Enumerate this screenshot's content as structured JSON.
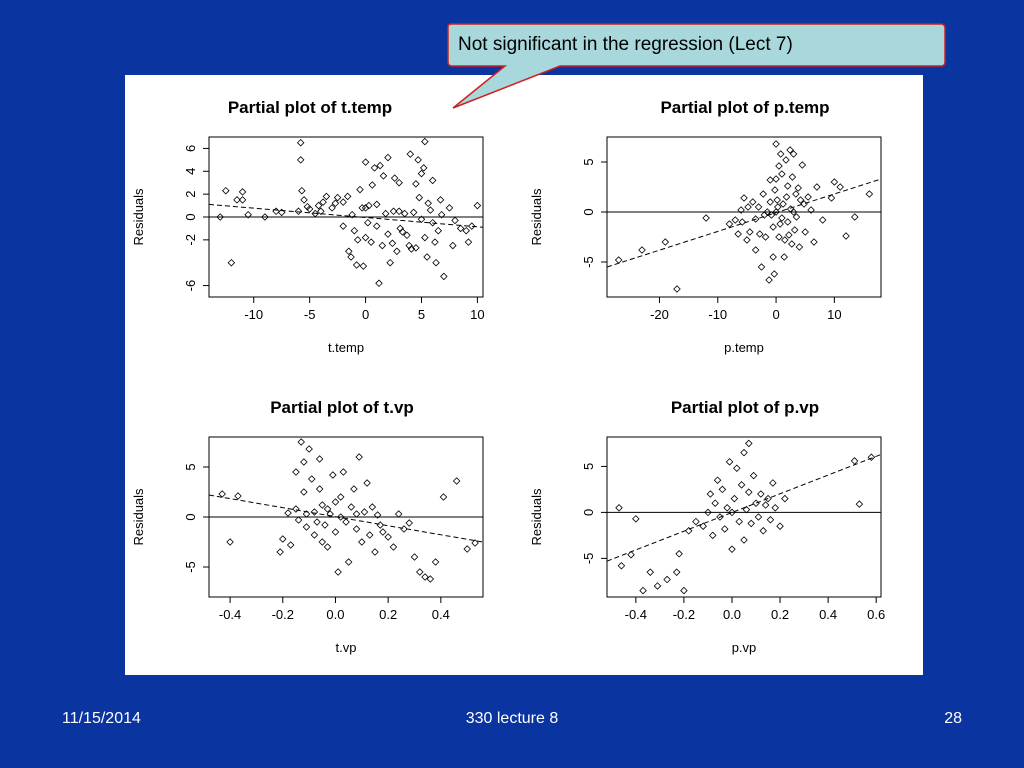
{
  "callout": {
    "text": "Not significant in the regression (Lect 7)"
  },
  "footer": {
    "date": "11/15/2014",
    "center": "330 lecture 8",
    "page": "28"
  },
  "colors": {
    "background": "#0a35a0",
    "callout_fill": "#a8d8dc",
    "callout_border": "#cc2222",
    "plot_ink": "#000000"
  },
  "chart_data": [
    {
      "type": "scatter",
      "title": "Partial plot of t.temp",
      "xlabel": "t.temp",
      "ylabel": "Residuals",
      "xlim": [
        -14,
        10.5
      ],
      "ylim": [
        -7,
        7
      ],
      "xticks": [
        -10,
        -5,
        0,
        5,
        10
      ],
      "yticks": [
        -6,
        -2,
        0,
        2,
        4,
        6
      ],
      "ytick_labels": [
        "-6",
        "-2",
        "0",
        "2",
        "4",
        "6"
      ],
      "hline": 0,
      "fit_line": [
        [
          -14,
          1.1
        ],
        [
          10.5,
          -0.9
        ]
      ],
      "points": [
        [
          -13,
          0
        ],
        [
          -12.5,
          2.3
        ],
        [
          -12,
          -4
        ],
        [
          -11.5,
          1.5
        ],
        [
          -11,
          2.2
        ],
        [
          -11,
          1.5
        ],
        [
          -10.5,
          0.2
        ],
        [
          -9,
          0
        ],
        [
          -8,
          0.5
        ],
        [
          -7.5,
          0.4
        ],
        [
          -6,
          0.5
        ],
        [
          -5.8,
          6.5
        ],
        [
          -5.8,
          5
        ],
        [
          -5.7,
          2.3
        ],
        [
          -5.5,
          1.5
        ],
        [
          -5.2,
          0.9
        ],
        [
          -5,
          0.7
        ],
        [
          -4.5,
          0.3
        ],
        [
          -4.2,
          1
        ],
        [
          -4,
          0.5
        ],
        [
          -3.8,
          1.3
        ],
        [
          -3.5,
          1.8
        ],
        [
          -3,
          0.8
        ],
        [
          -2.7,
          1.2
        ],
        [
          -2.5,
          1.7
        ],
        [
          -2,
          1.3
        ],
        [
          -2,
          -0.8
        ],
        [
          -1.6,
          1.8
        ],
        [
          -1.5,
          -3
        ],
        [
          -1.3,
          -3.5
        ],
        [
          -1.2,
          0.2
        ],
        [
          -1,
          -1.2
        ],
        [
          -0.8,
          -4.2
        ],
        [
          -0.7,
          -2
        ],
        [
          -0.5,
          2.4
        ],
        [
          -0.3,
          0.8
        ],
        [
          -0.2,
          -4.3
        ],
        [
          0,
          0.8
        ],
        [
          0,
          -1.8
        ],
        [
          0,
          4.8
        ],
        [
          0.2,
          -0.5
        ],
        [
          0.3,
          1
        ],
        [
          0.5,
          -2.2
        ],
        [
          0.6,
          2.8
        ],
        [
          0.8,
          4.3
        ],
        [
          1,
          1.1
        ],
        [
          1,
          -0.8
        ],
        [
          1.2,
          -5.8
        ],
        [
          1.3,
          4.5
        ],
        [
          1.5,
          -2.5
        ],
        [
          1.6,
          3.6
        ],
        [
          1.8,
          0.3
        ],
        [
          2,
          5.2
        ],
        [
          2,
          -1.5
        ],
        [
          2.2,
          -4
        ],
        [
          2.4,
          -2.3
        ],
        [
          2.5,
          0.5
        ],
        [
          2.6,
          3.4
        ],
        [
          2.8,
          -3
        ],
        [
          3,
          0.5
        ],
        [
          3,
          3
        ],
        [
          3.1,
          -1
        ],
        [
          3.3,
          -1.3
        ],
        [
          3.5,
          0.3
        ],
        [
          3.7,
          -1.6
        ],
        [
          3.9,
          -2.5
        ],
        [
          4,
          5.5
        ],
        [
          4.1,
          -2.8
        ],
        [
          4.3,
          0.4
        ],
        [
          4.5,
          2.9
        ],
        [
          4.5,
          -2.7
        ],
        [
          4.7,
          5
        ],
        [
          4.8,
          1.7
        ],
        [
          5,
          3.8
        ],
        [
          5,
          -0.2
        ],
        [
          5.2,
          4.3
        ],
        [
          5.3,
          6.6
        ],
        [
          5.3,
          -1.8
        ],
        [
          5.5,
          -3.5
        ],
        [
          5.6,
          1.2
        ],
        [
          5.8,
          0.6
        ],
        [
          6,
          -0.5
        ],
        [
          6,
          3.2
        ],
        [
          6.2,
          -2.2
        ],
        [
          6.3,
          -4
        ],
        [
          6.5,
          -1.2
        ],
        [
          6.7,
          1.5
        ],
        [
          6.8,
          0.2
        ],
        [
          7,
          -5.2
        ],
        [
          7.5,
          0.8
        ],
        [
          7.8,
          -2.5
        ],
        [
          8,
          -0.3
        ],
        [
          8.5,
          -1
        ],
        [
          9,
          -1.2
        ],
        [
          9.2,
          -2.2
        ],
        [
          9.5,
          -0.8
        ],
        [
          10,
          1
        ]
      ]
    },
    {
      "type": "scatter",
      "title": "Partial plot of p.temp",
      "xlabel": "p.temp",
      "ylabel": "Residuals",
      "xlim": [
        -29,
        18
      ],
      "ylim": [
        -8.5,
        7.5
      ],
      "xticks": [
        -20,
        -10,
        0,
        10
      ],
      "yticks": [
        -5,
        0,
        5
      ],
      "ytick_labels": [
        "-5",
        "0",
        "5"
      ],
      "hline": 0,
      "fit_line": [
        [
          -29,
          -5.5
        ],
        [
          18,
          3.3
        ]
      ],
      "points": [
        [
          -27,
          -4.8
        ],
        [
          -23,
          -3.8
        ],
        [
          -19,
          -3
        ],
        [
          -17,
          -7.7
        ],
        [
          -12,
          -0.6
        ],
        [
          -8,
          -1.2
        ],
        [
          -7,
          -0.8
        ],
        [
          -6.5,
          -2.2
        ],
        [
          -6,
          0.2
        ],
        [
          -5.8,
          -1
        ],
        [
          -5.5,
          1.4
        ],
        [
          -5,
          -2.8
        ],
        [
          -4.8,
          0.5
        ],
        [
          -4.5,
          -2
        ],
        [
          -4,
          1
        ],
        [
          -3.5,
          -0.7
        ],
        [
          -3.5,
          -3.8
        ],
        [
          -3,
          0.5
        ],
        [
          -2.8,
          -2.2
        ],
        [
          -2.5,
          -5.5
        ],
        [
          -2.2,
          1.8
        ],
        [
          -2,
          -0.3
        ],
        [
          -1.8,
          -2.5
        ],
        [
          -1.5,
          0
        ],
        [
          -1.2,
          -6.8
        ],
        [
          -1,
          3.2
        ],
        [
          -1,
          1
        ],
        [
          -0.8,
          -0.3
        ],
        [
          -0.5,
          -4.5
        ],
        [
          -0.5,
          -1.5
        ],
        [
          -0.3,
          -6.2
        ],
        [
          -0.2,
          2.2
        ],
        [
          0,
          0
        ],
        [
          0,
          3.3
        ],
        [
          0,
          6.8
        ],
        [
          0.2,
          1.2
        ],
        [
          0.3,
          0.5
        ],
        [
          0.5,
          -2.5
        ],
        [
          0.5,
          4.6
        ],
        [
          0.7,
          -1.2
        ],
        [
          0.8,
          5.8
        ],
        [
          1,
          3.8
        ],
        [
          1,
          -0.6
        ],
        [
          1.2,
          0.8
        ],
        [
          1.4,
          -4.5
        ],
        [
          1.5,
          -2.8
        ],
        [
          1.7,
          5.2
        ],
        [
          1.8,
          1.5
        ],
        [
          2,
          -1
        ],
        [
          2,
          2.6
        ],
        [
          2.2,
          -2.3
        ],
        [
          2.4,
          6.2
        ],
        [
          2.5,
          0.3
        ],
        [
          2.7,
          -3.2
        ],
        [
          2.8,
          3.5
        ],
        [
          3,
          0
        ],
        [
          3,
          5.8
        ],
        [
          3.2,
          -1.8
        ],
        [
          3.4,
          1.8
        ],
        [
          3.5,
          -0.5
        ],
        [
          3.8,
          2.4
        ],
        [
          4,
          -3.5
        ],
        [
          4.2,
          1.2
        ],
        [
          4.5,
          4.7
        ],
        [
          4.8,
          0.8
        ],
        [
          5,
          -2
        ],
        [
          5.5,
          1.5
        ],
        [
          6,
          0.2
        ],
        [
          6.5,
          -3
        ],
        [
          7,
          2.5
        ],
        [
          8,
          -0.8
        ],
        [
          9.5,
          1.4
        ],
        [
          10,
          3
        ],
        [
          11,
          2.5
        ],
        [
          12,
          -2.4
        ],
        [
          13.5,
          -0.5
        ],
        [
          16,
          1.8
        ]
      ]
    },
    {
      "type": "scatter",
      "title": "Partial plot of t.vp",
      "xlabel": "t.vp",
      "ylabel": "Residuals",
      "xlim": [
        -0.48,
        0.56
      ],
      "ylim": [
        -8,
        8
      ],
      "xticks": [
        -0.4,
        -0.2,
        0.0,
        0.2,
        0.4
      ],
      "xtick_labels": [
        "-0.4",
        "-0.2",
        "0.0",
        "0.2",
        "0.4"
      ],
      "yticks": [
        -5,
        0,
        5
      ],
      "ytick_labels": [
        "-5",
        "0",
        "5"
      ],
      "hline": 0,
      "fit_line": [
        [
          -0.48,
          2.2
        ],
        [
          0.56,
          -2.5
        ]
      ],
      "points": [
        [
          -0.43,
          2.3
        ],
        [
          -0.4,
          -2.5
        ],
        [
          -0.37,
          2.1
        ],
        [
          -0.21,
          -3.5
        ],
        [
          -0.2,
          -2.2
        ],
        [
          -0.18,
          0.4
        ],
        [
          -0.17,
          -2.8
        ],
        [
          -0.15,
          0.8
        ],
        [
          -0.15,
          4.5
        ],
        [
          -0.14,
          -0.3
        ],
        [
          -0.13,
          7.5
        ],
        [
          -0.12,
          5.5
        ],
        [
          -0.12,
          2.5
        ],
        [
          -0.11,
          -1
        ],
        [
          -0.11,
          0.3
        ],
        [
          -0.1,
          6.8
        ],
        [
          -0.09,
          3.8
        ],
        [
          -0.08,
          -1.8
        ],
        [
          -0.08,
          0.5
        ],
        [
          -0.07,
          -0.5
        ],
        [
          -0.06,
          2.8
        ],
        [
          -0.06,
          5.8
        ],
        [
          -0.05,
          -2.5
        ],
        [
          -0.05,
          1.2
        ],
        [
          -0.04,
          -0.8
        ],
        [
          -0.03,
          0.8
        ],
        [
          -0.03,
          -3
        ],
        [
          -0.02,
          0.3
        ],
        [
          -0.01,
          4.2
        ],
        [
          0,
          -1.5
        ],
        [
          0,
          1.5
        ],
        [
          0.01,
          -5.5
        ],
        [
          0.02,
          0
        ],
        [
          0.02,
          2
        ],
        [
          0.03,
          4.5
        ],
        [
          0.04,
          -0.5
        ],
        [
          0.05,
          -4.5
        ],
        [
          0.06,
          1
        ],
        [
          0.07,
          2.8
        ],
        [
          0.08,
          0.3
        ],
        [
          0.08,
          -1.2
        ],
        [
          0.09,
          6
        ],
        [
          0.1,
          -2.5
        ],
        [
          0.11,
          0.5
        ],
        [
          0.12,
          3.4
        ],
        [
          0.13,
          -1.8
        ],
        [
          0.14,
          1
        ],
        [
          0.15,
          -3.5
        ],
        [
          0.16,
          0.2
        ],
        [
          0.17,
          -0.8
        ],
        [
          0.18,
          -1.5
        ],
        [
          0.2,
          -2
        ],
        [
          0.22,
          -3
        ],
        [
          0.24,
          0.3
        ],
        [
          0.26,
          -1.2
        ],
        [
          0.28,
          -0.6
        ],
        [
          0.3,
          -4
        ],
        [
          0.32,
          -5.5
        ],
        [
          0.34,
          -6
        ],
        [
          0.36,
          -6.2
        ],
        [
          0.38,
          -4.5
        ],
        [
          0.41,
          2
        ],
        [
          0.46,
          3.6
        ],
        [
          0.5,
          -3.2
        ],
        [
          0.53,
          -2.6
        ]
      ]
    },
    {
      "type": "scatter",
      "title": "Partial plot of p.vp",
      "xlabel": "p.vp",
      "ylabel": "Residuals",
      "xlim": [
        -0.52,
        0.62
      ],
      "ylim": [
        -9.2,
        8.2
      ],
      "xticks": [
        -0.4,
        -0.2,
        0.0,
        0.2,
        0.4,
        0.6
      ],
      "xtick_labels": [
        "-0.4",
        "-0.2",
        "0.0",
        "0.2",
        "0.4",
        "0.6"
      ],
      "yticks": [
        -5,
        0,
        5
      ],
      "ytick_labels": [
        "-5",
        "0",
        "5"
      ],
      "hline": 0,
      "fit_line": [
        [
          -0.52,
          -5.3
        ],
        [
          0.62,
          6.3
        ]
      ],
      "points": [
        [
          -0.47,
          0.5
        ],
        [
          -0.46,
          -5.8
        ],
        [
          -0.42,
          -4.6
        ],
        [
          -0.4,
          -0.7
        ],
        [
          -0.37,
          -8.5
        ],
        [
          -0.34,
          -6.5
        ],
        [
          -0.31,
          -8
        ],
        [
          -0.27,
          -7.3
        ],
        [
          -0.23,
          -6.5
        ],
        [
          -0.22,
          -4.5
        ],
        [
          -0.2,
          -8.5
        ],
        [
          -0.18,
          -2
        ],
        [
          -0.15,
          -1
        ],
        [
          -0.12,
          -1.5
        ],
        [
          -0.1,
          0
        ],
        [
          -0.09,
          2
        ],
        [
          -0.08,
          -2.5
        ],
        [
          -0.07,
          1
        ],
        [
          -0.06,
          3.5
        ],
        [
          -0.05,
          -0.5
        ],
        [
          -0.04,
          2.5
        ],
        [
          -0.03,
          -1.8
        ],
        [
          -0.02,
          0.5
        ],
        [
          -0.01,
          5.5
        ],
        [
          0,
          0
        ],
        [
          0,
          -4
        ],
        [
          0.01,
          1.5
        ],
        [
          0.02,
          4.8
        ],
        [
          0.03,
          -1
        ],
        [
          0.04,
          3
        ],
        [
          0.05,
          6.5
        ],
        [
          0.05,
          -3
        ],
        [
          0.06,
          0.3
        ],
        [
          0.07,
          7.5
        ],
        [
          0.07,
          2.2
        ],
        [
          0.08,
          -1.2
        ],
        [
          0.09,
          4
        ],
        [
          0.1,
          1
        ],
        [
          0.11,
          -0.5
        ],
        [
          0.12,
          2
        ],
        [
          0.13,
          -2
        ],
        [
          0.14,
          0.8
        ],
        [
          0.15,
          1.5
        ],
        [
          0.16,
          -0.8
        ],
        [
          0.17,
          3.2
        ],
        [
          0.18,
          0.5
        ],
        [
          0.2,
          -1.5
        ],
        [
          0.22,
          1.5
        ],
        [
          0.51,
          5.6
        ],
        [
          0.53,
          0.9
        ],
        [
          0.58,
          6
        ]
      ]
    }
  ]
}
